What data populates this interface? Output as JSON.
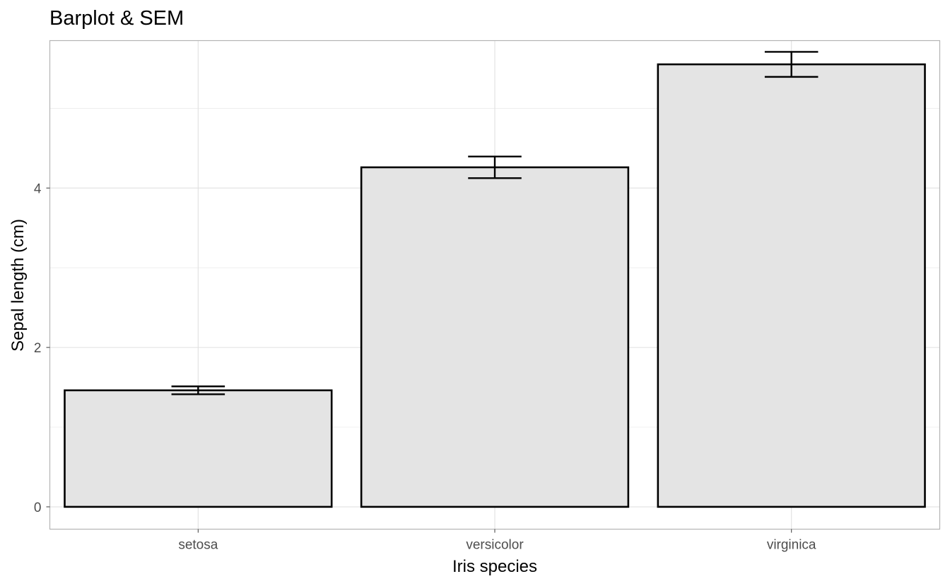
{
  "chart_data": {
    "type": "bar",
    "title": "Barplot & SEM",
    "xlabel": "Iris species",
    "ylabel": "Sepal length (cm)",
    "categories": [
      "setosa",
      "versicolor",
      "virginica"
    ],
    "values": [
      1.462,
      4.26,
      5.552
    ],
    "sem": [
      0.0497,
      0.1357,
      0.1571
    ],
    "ylim": [
      -0.28,
      5.85
    ],
    "yticks": [
      0,
      2,
      4
    ],
    "yticks_minor": [
      1,
      3,
      5
    ],
    "grid": true,
    "legend": "none",
    "colors": {
      "bar_fill": "#e4e4e4",
      "bar_stroke": "#000000"
    }
  }
}
